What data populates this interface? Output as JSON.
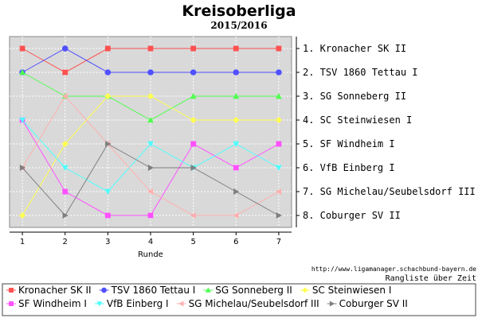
{
  "chart_data": {
    "type": "line",
    "title": "Kreisoberliga",
    "subtitle": "2015/2016",
    "xlabel": "Runde",
    "x": [
      1,
      2,
      3,
      4,
      5,
      6,
      7
    ],
    "ylim": [
      0.5,
      8.5
    ],
    "y_inverted": true,
    "grid": true,
    "rank_labels": [
      "1. Kronacher SK II",
      "2. TSV 1860 Tettau I",
      "3. SG Sonneberg II",
      "4. SC Steinwiesen I",
      "5. SF Windheim I",
      "6. VfB Einberg I",
      "7. SG Michelau/Seubelsdorf III",
      "8. Coburger SV II"
    ],
    "source": "http://www.ligamanager.schachbund-bayern.de",
    "note": "Rangliste über Zeit",
    "legend_position": "bottom",
    "series": [
      {
        "name": "Kronacher SK II",
        "color": "#ff5050",
        "marker": "square",
        "values": [
          1,
          2,
          1,
          1,
          1,
          1,
          1
        ]
      },
      {
        "name": "TSV 1860 Tettau I",
        "color": "#5050ff",
        "marker": "circle",
        "values": [
          2,
          1,
          2,
          2,
          2,
          2,
          2
        ]
      },
      {
        "name": "SG Sonneberg II",
        "color": "#50ff50",
        "marker": "triangle-up",
        "values": [
          2,
          3,
          3,
          4,
          3,
          3,
          3
        ]
      },
      {
        "name": "SC Steinwiesen I",
        "color": "#ffff50",
        "marker": "diamond",
        "values": [
          8,
          5,
          3,
          3,
          4,
          4,
          4
        ]
      },
      {
        "name": "SF Windheim I",
        "color": "#ff50ff",
        "marker": "square",
        "values": [
          4,
          7,
          8,
          8,
          5,
          6,
          5
        ]
      },
      {
        "name": "VfB Einberg I",
        "color": "#50ffff",
        "marker": "triangle-down",
        "values": [
          4,
          6,
          7,
          5,
          6,
          5,
          6
        ]
      },
      {
        "name": "SG Michelau/Seubelsdorf III",
        "color": "#ffb0b0",
        "marker": "triangle-left",
        "values": [
          6,
          3,
          5,
          7,
          8,
          8,
          7
        ]
      },
      {
        "name": "Coburger SV II",
        "color": "#808080",
        "marker": "triangle-right",
        "values": [
          6,
          8,
          5,
          6,
          6,
          7,
          8
        ]
      }
    ]
  }
}
